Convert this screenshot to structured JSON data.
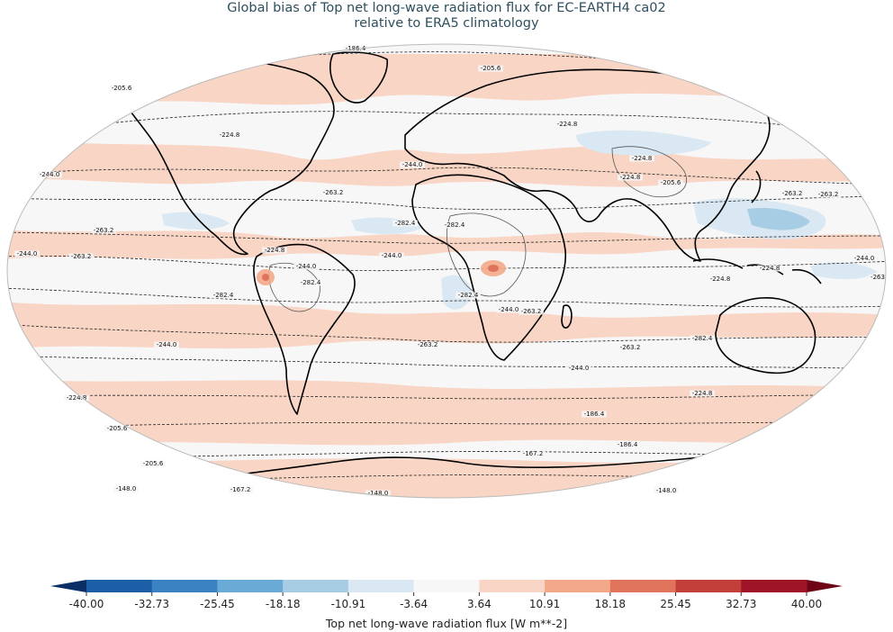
{
  "title_line1": "Global bias of Top net long-wave radiation flux for EC-EARTH4 ca02",
  "title_line2": "relative to ERA5 climatology",
  "colorbar": {
    "label": "Top net long-wave radiation flux [W m**-2]",
    "ticks": [
      "-40.00",
      "-32.73",
      "-25.45",
      "-18.18",
      "-10.91",
      "-3.64",
      "3.64",
      "10.91",
      "18.18",
      "25.45",
      "32.73",
      "40.00"
    ],
    "colors": [
      "#1d5fa6",
      "#3b82c2",
      "#6aaad6",
      "#a7cde4",
      "#d9e8f2",
      "#f7f7f7",
      "#f8d5c4",
      "#f3a889",
      "#e0735c",
      "#c33f39",
      "#a01428"
    ],
    "extend_low": "#0a2e66",
    "extend_high": "#6e0416"
  },
  "contour_labels": [
    {
      "text": "-186.4"
    },
    {
      "text": "-205.6"
    },
    {
      "text": "-205.6"
    },
    {
      "text": "-224.8"
    },
    {
      "text": "-224.8"
    },
    {
      "text": "-244.0"
    },
    {
      "text": "-224.8"
    },
    {
      "text": "-205.6"
    },
    {
      "text": "-244.0"
    },
    {
      "text": "-263.2"
    },
    {
      "text": "-263.2"
    },
    {
      "text": "-244.0"
    },
    {
      "text": "-263.2"
    },
    {
      "text": "-224.8"
    },
    {
      "text": "-244.0"
    },
    {
      "text": "-282.4"
    },
    {
      "text": "-282.4"
    },
    {
      "text": "-282.4"
    },
    {
      "text": "-224.8"
    },
    {
      "text": "-244.0"
    },
    {
      "text": "-263.2"
    },
    {
      "text": "-282.4"
    },
    {
      "text": "-263.2"
    },
    {
      "text": "-244.0"
    },
    {
      "text": "-224.8"
    },
    {
      "text": "-205.6"
    },
    {
      "text": "-186.4"
    },
    {
      "text": "-167.2"
    },
    {
      "text": "-148.0"
    },
    {
      "text": "-148.0"
    },
    {
      "text": "-186.4"
    },
    {
      "text": "-205.6"
    },
    {
      "text": "-244.0"
    },
    {
      "text": "-263.2"
    },
    {
      "text": "-282.4"
    },
    {
      "text": "-263.2"
    },
    {
      "text": "-224.8"
    },
    {
      "text": "-244.0"
    },
    {
      "text": "-263"
    },
    {
      "text": "-224.8"
    },
    {
      "text": "-244.0"
    },
    {
      "text": "-224.8"
    },
    {
      "text": "-263.2"
    },
    {
      "text": "-282.4"
    },
    {
      "text": "-167.2"
    },
    {
      "text": "-148.0"
    }
  ]
}
